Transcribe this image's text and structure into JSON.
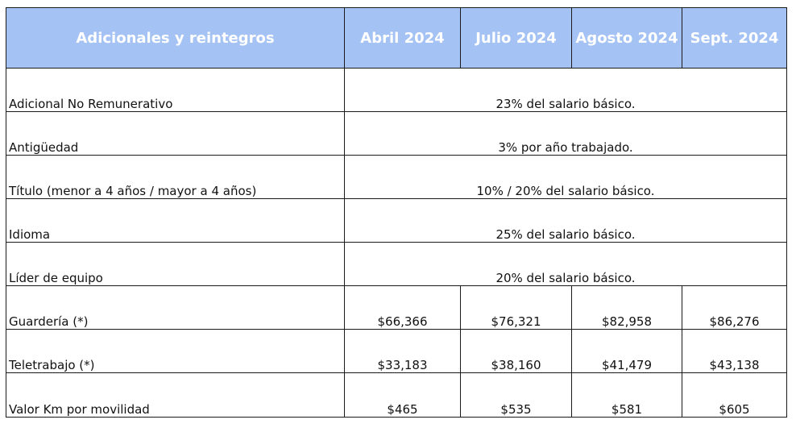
{
  "header": {
    "category": "Adicionales y reintegros",
    "columns": [
      "Abril 2024",
      "Julio 2024",
      "Agosto 2024",
      "Sept. 2024"
    ]
  },
  "rows": [
    {
      "label": "Adicional No Remunerativo",
      "span_value": "23% del salario básico."
    },
    {
      "label": "Antigüedad",
      "span_value": "3% por año trabajado."
    },
    {
      "label": "Título (menor a 4 años / mayor a 4 años)",
      "span_value": "10% / 20% del salario básico."
    },
    {
      "label": "Idioma",
      "span_value": "25% del salario básico."
    },
    {
      "label": "Líder de equipo",
      "span_value": "20% del salario básico."
    },
    {
      "label": "Guardería (*)",
      "values": [
        "$66,366",
        "$76,321",
        "$82,958",
        "$86,276"
      ]
    },
    {
      "label": "Teletrabajo (*)",
      "values": [
        "$33,183",
        "$38,160",
        "$41,479",
        "$43,138"
      ]
    },
    {
      "label": "Valor Km por movilidad",
      "values": [
        "$465",
        "$535",
        "$581",
        "$605"
      ]
    }
  ],
  "colors": {
    "header_bg": "#a4c2f4",
    "header_text": "#ffffff",
    "border": "#1a1a1a"
  }
}
